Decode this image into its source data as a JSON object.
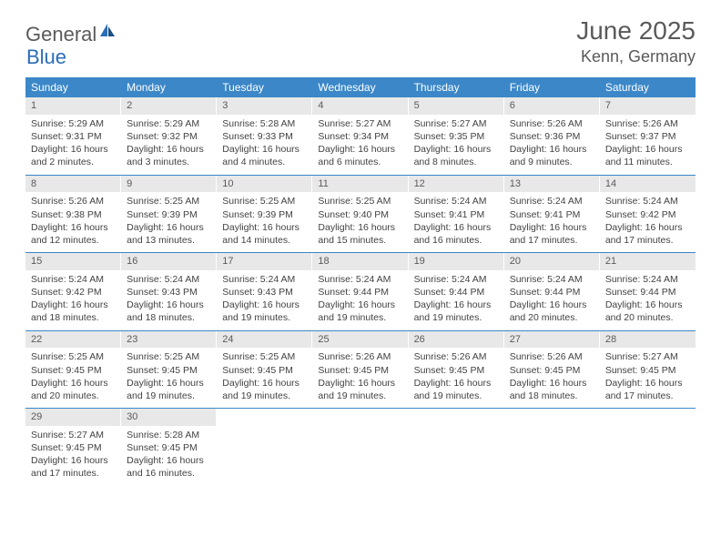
{
  "brand": {
    "part1": "General",
    "part2": "Blue"
  },
  "title": "June 2025",
  "location": "Kenn, Germany",
  "colors": {
    "header_bg": "#3b87c8",
    "daynum_bg": "#e8e8e8",
    "text_muted": "#5a5a5a",
    "text_body": "#424242",
    "brand_blue": "#2a6db8"
  },
  "weekdays": [
    "Sunday",
    "Monday",
    "Tuesday",
    "Wednesday",
    "Thursday",
    "Friday",
    "Saturday"
  ],
  "weeks": [
    [
      {
        "n": "1",
        "sr": "5:29 AM",
        "ss": "9:31 PM",
        "dl": "16 hours and 2 minutes."
      },
      {
        "n": "2",
        "sr": "5:29 AM",
        "ss": "9:32 PM",
        "dl": "16 hours and 3 minutes."
      },
      {
        "n": "3",
        "sr": "5:28 AM",
        "ss": "9:33 PM",
        "dl": "16 hours and 4 minutes."
      },
      {
        "n": "4",
        "sr": "5:27 AM",
        "ss": "9:34 PM",
        "dl": "16 hours and 6 minutes."
      },
      {
        "n": "5",
        "sr": "5:27 AM",
        "ss": "9:35 PM",
        "dl": "16 hours and 8 minutes."
      },
      {
        "n": "6",
        "sr": "5:26 AM",
        "ss": "9:36 PM",
        "dl": "16 hours and 9 minutes."
      },
      {
        "n": "7",
        "sr": "5:26 AM",
        "ss": "9:37 PM",
        "dl": "16 hours and 11 minutes."
      }
    ],
    [
      {
        "n": "8",
        "sr": "5:26 AM",
        "ss": "9:38 PM",
        "dl": "16 hours and 12 minutes."
      },
      {
        "n": "9",
        "sr": "5:25 AM",
        "ss": "9:39 PM",
        "dl": "16 hours and 13 minutes."
      },
      {
        "n": "10",
        "sr": "5:25 AM",
        "ss": "9:39 PM",
        "dl": "16 hours and 14 minutes."
      },
      {
        "n": "11",
        "sr": "5:25 AM",
        "ss": "9:40 PM",
        "dl": "16 hours and 15 minutes."
      },
      {
        "n": "12",
        "sr": "5:24 AM",
        "ss": "9:41 PM",
        "dl": "16 hours and 16 minutes."
      },
      {
        "n": "13",
        "sr": "5:24 AM",
        "ss": "9:41 PM",
        "dl": "16 hours and 17 minutes."
      },
      {
        "n": "14",
        "sr": "5:24 AM",
        "ss": "9:42 PM",
        "dl": "16 hours and 17 minutes."
      }
    ],
    [
      {
        "n": "15",
        "sr": "5:24 AM",
        "ss": "9:42 PM",
        "dl": "16 hours and 18 minutes."
      },
      {
        "n": "16",
        "sr": "5:24 AM",
        "ss": "9:43 PM",
        "dl": "16 hours and 18 minutes."
      },
      {
        "n": "17",
        "sr": "5:24 AM",
        "ss": "9:43 PM",
        "dl": "16 hours and 19 minutes."
      },
      {
        "n": "18",
        "sr": "5:24 AM",
        "ss": "9:44 PM",
        "dl": "16 hours and 19 minutes."
      },
      {
        "n": "19",
        "sr": "5:24 AM",
        "ss": "9:44 PM",
        "dl": "16 hours and 19 minutes."
      },
      {
        "n": "20",
        "sr": "5:24 AM",
        "ss": "9:44 PM",
        "dl": "16 hours and 20 minutes."
      },
      {
        "n": "21",
        "sr": "5:24 AM",
        "ss": "9:44 PM",
        "dl": "16 hours and 20 minutes."
      }
    ],
    [
      {
        "n": "22",
        "sr": "5:25 AM",
        "ss": "9:45 PM",
        "dl": "16 hours and 20 minutes."
      },
      {
        "n": "23",
        "sr": "5:25 AM",
        "ss": "9:45 PM",
        "dl": "16 hours and 19 minutes."
      },
      {
        "n": "24",
        "sr": "5:25 AM",
        "ss": "9:45 PM",
        "dl": "16 hours and 19 minutes."
      },
      {
        "n": "25",
        "sr": "5:26 AM",
        "ss": "9:45 PM",
        "dl": "16 hours and 19 minutes."
      },
      {
        "n": "26",
        "sr": "5:26 AM",
        "ss": "9:45 PM",
        "dl": "16 hours and 19 minutes."
      },
      {
        "n": "27",
        "sr": "5:26 AM",
        "ss": "9:45 PM",
        "dl": "16 hours and 18 minutes."
      },
      {
        "n": "28",
        "sr": "5:27 AM",
        "ss": "9:45 PM",
        "dl": "16 hours and 17 minutes."
      }
    ],
    [
      {
        "n": "29",
        "sr": "5:27 AM",
        "ss": "9:45 PM",
        "dl": "16 hours and 17 minutes."
      },
      {
        "n": "30",
        "sr": "5:28 AM",
        "ss": "9:45 PM",
        "dl": "16 hours and 16 minutes."
      },
      null,
      null,
      null,
      null,
      null
    ]
  ],
  "labels": {
    "sunrise": "Sunrise:",
    "sunset": "Sunset:",
    "daylight": "Daylight:"
  }
}
